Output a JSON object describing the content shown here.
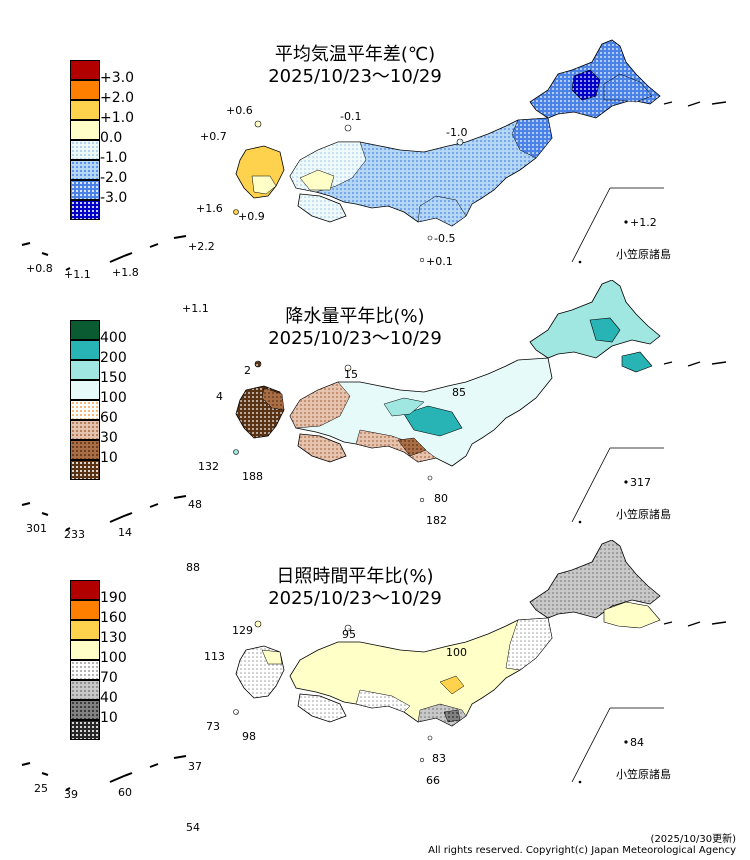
{
  "panels": [
    {
      "id": "temperature",
      "title_line1": "平均気温平年差(℃)",
      "title_line2": "2025/10/23〜10/29",
      "legend": [
        {
          "label": "+3.0",
          "color": "#b20000",
          "pattern": "solid"
        },
        {
          "label": "+2.0",
          "color": "#ff8000",
          "pattern": "solid"
        },
        {
          "label": "+1.0",
          "color": "#ffd24d",
          "pattern": "solid"
        },
        {
          "label": "0.0",
          "color": "#ffffc8",
          "pattern": "solid"
        },
        {
          "label": "-1.0",
          "color": "#eefafa",
          "pattern": "dots-light"
        },
        {
          "label": "-2.0",
          "color": "#b4d7f5",
          "pattern": "dots"
        },
        {
          "label": "-3.0",
          "color": "#4b82e6",
          "pattern": "dots"
        },
        {
          "label": "",
          "color": "#0000c8",
          "pattern": "dots-white"
        }
      ],
      "values": [
        "+0.6",
        "-0.1",
        "+0.7",
        "-1.0",
        "+1.6",
        "+0.9",
        "+1.2",
        "-0.5",
        "+0.8",
        "+1.1",
        "+1.8",
        "+2.2",
        "+0.1",
        "+1.1"
      ],
      "ogasawara": "小笠原諸島"
    },
    {
      "id": "precipitation",
      "title_line1": "降水量平年比(%)",
      "title_line2": "2025/10/23〜10/29",
      "legend": [
        {
          "label": "400",
          "color": "#0a5a32",
          "pattern": "solid"
        },
        {
          "label": "200",
          "color": "#28b4b4",
          "pattern": "solid"
        },
        {
          "label": "150",
          "color": "#a0e6e1",
          "pattern": "solid"
        },
        {
          "label": "100",
          "color": "#e6fafa",
          "pattern": "solid"
        },
        {
          "label": "60",
          "color": "#ffffff",
          "pattern": "dots-orange"
        },
        {
          "label": "30",
          "color": "#e6c3af",
          "pattern": "dots"
        },
        {
          "label": "10",
          "color": "#aa6e46",
          "pattern": "dots"
        },
        {
          "label": "",
          "color": "#5a3214",
          "pattern": "dots-white"
        }
      ],
      "values": [
        "2",
        "15",
        "4",
        "85",
        "132",
        "188",
        "317",
        "80",
        "48",
        "301",
        "233",
        "14",
        "182",
        "88"
      ],
      "ogasawara": "小笠原諸島"
    },
    {
      "id": "sunshine",
      "title_line1": "日照時間平年比(%)",
      "title_line2": "2025/10/23〜10/29",
      "legend": [
        {
          "label": "190",
          "color": "#b20000",
          "pattern": "solid"
        },
        {
          "label": "160",
          "color": "#ff8000",
          "pattern": "solid"
        },
        {
          "label": "130",
          "color": "#ffd24d",
          "pattern": "solid"
        },
        {
          "label": "100",
          "color": "#ffffc8",
          "pattern": "solid"
        },
        {
          "label": "70",
          "color": "#ffffff",
          "pattern": "dots-gray"
        },
        {
          "label": "40",
          "color": "#c8c8c8",
          "pattern": "dots"
        },
        {
          "label": "10",
          "color": "#828282",
          "pattern": "dots"
        },
        {
          "label": "",
          "color": "#282828",
          "pattern": "dots-white"
        }
      ],
      "values": [
        "129",
        "95",
        "113",
        "100",
        "73",
        "98",
        "84",
        "83",
        "37",
        "25",
        "39",
        "60",
        "66",
        "54"
      ],
      "ogasawara": "小笠原諸島"
    }
  ],
  "footer": {
    "updated": "(2025/10/30更新)",
    "copyright": "All rights reserved. Copyright(c) Japan Meteorological Agency"
  }
}
